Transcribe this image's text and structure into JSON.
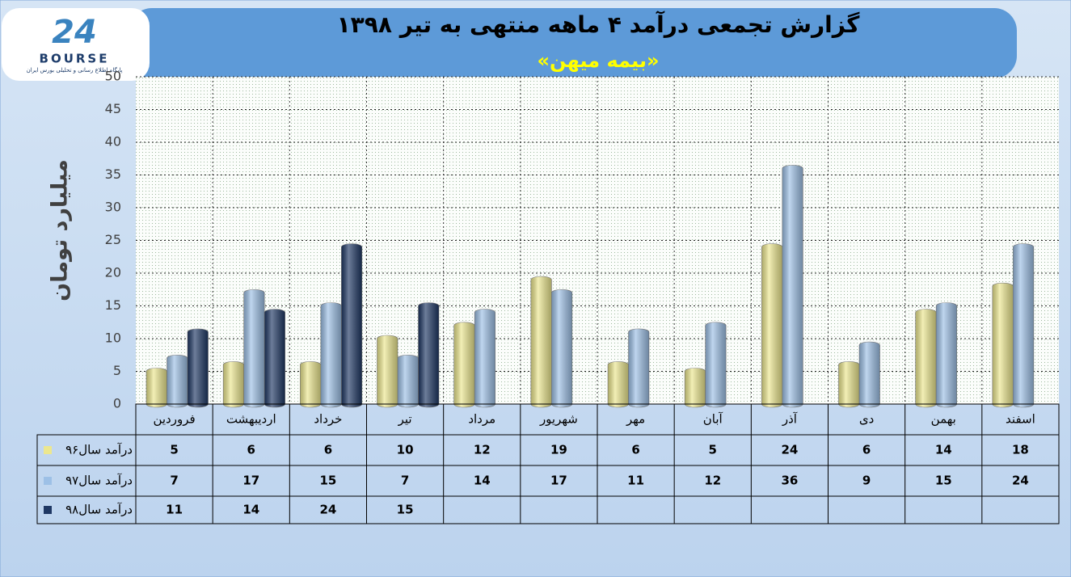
{
  "logo": {
    "mark": "24",
    "name": "BOURSE",
    "tagline": "پایگاه اطلاع رسانی و تحلیلی بورس ایران"
  },
  "chart_data": {
    "type": "bar",
    "title": "گزارش تجمعی درآمد ۴ ماهه منتهی به تیر ۱۳۹۸",
    "subtitle": "«بیمه میهن»",
    "y_label": "میلیارد تومان",
    "categories": [
      "فروردین",
      "اردیبهشت",
      "خرداد",
      "تیر",
      "مرداد",
      "شهریور",
      "مهر",
      "آبان",
      "آذر",
      "دی",
      "بهمن",
      "اسفند"
    ],
    "series": [
      {
        "name": "درآمد سال۹۶",
        "color": "#ece78f",
        "values": [
          5,
          6,
          6,
          10,
          12,
          19,
          6,
          5,
          24,
          6,
          14,
          18
        ]
      },
      {
        "name": "درآمد سال۹۷",
        "color": "#9dc0e6",
        "values": [
          7,
          17,
          15,
          7,
          14,
          17,
          11,
          12,
          36,
          9,
          15,
          24
        ]
      },
      {
        "name": "درآمد سال۹۸",
        "color": "#1f3864",
        "values": [
          11,
          14,
          24,
          15,
          null,
          null,
          null,
          null,
          null,
          null,
          null,
          null
        ]
      }
    ],
    "ylim": [
      0,
      50
    ],
    "yticks": [
      0,
      5,
      10,
      15,
      20,
      25,
      30,
      35,
      40,
      45,
      50
    ],
    "grid": true
  }
}
